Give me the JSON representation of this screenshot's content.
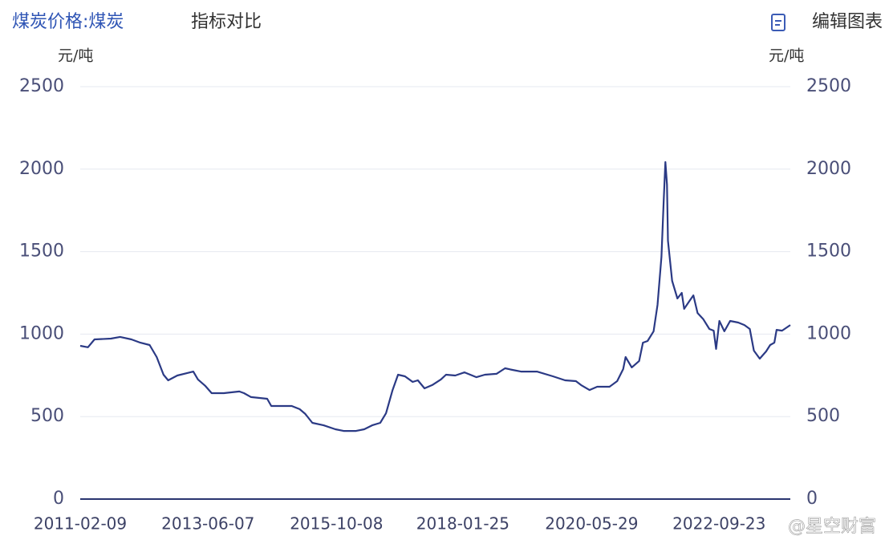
{
  "header": {
    "tab_active": "煤炭价格:煤炭",
    "tab": "指标对比",
    "edit_button": "编辑图表"
  },
  "chart_data": {
    "type": "line",
    "y_unit": "元/吨",
    "y2_unit": "元/吨",
    "x": [
      "2011-02-09",
      "2011-04-01",
      "2011-05-15",
      "2011-09-01",
      "2011-11-01",
      "2012-01-15",
      "2012-03-15",
      "2012-05-15",
      "2012-07-01",
      "2012-08-15",
      "2012-09-15",
      "2012-11-15",
      "2013-01-20",
      "2013-03-01",
      "2013-04-01",
      "2013-05-20",
      "2013-07-01",
      "2013-09-20",
      "2014-01-01",
      "2014-02-01",
      "2014-03-20",
      "2014-07-05",
      "2014-08-01",
      "2014-12-15",
      "2015-02-05",
      "2015-03-15",
      "2015-05-01",
      "2015-07-15",
      "2015-10-01",
      "2015-11-25",
      "2016-02-15",
      "2016-04-10",
      "2016-06-01",
      "2016-07-25",
      "2016-09-01",
      "2016-10-15",
      "2016-11-20",
      "2017-01-05",
      "2017-02-25",
      "2017-04-01",
      "2017-05-15",
      "2017-07-05",
      "2017-09-01",
      "2017-10-05",
      "2017-12-05",
      "2018-02-05",
      "2018-04-25",
      "2018-06-20",
      "2018-09-05",
      "2018-11-01",
      "2018-12-20",
      "2019-02-15",
      "2019-06-01",
      "2019-09-15",
      "2019-12-05",
      "2020-02-15",
      "2020-03-20",
      "2020-05-15",
      "2020-07-05",
      "2020-09-25",
      "2020-11-15",
      "2020-12-25",
      "2021-01-10",
      "2021-02-20",
      "2021-04-10",
      "2021-05-05",
      "2021-06-05",
      "2021-07-15",
      "2021-08-10",
      "2021-09-05",
      "2021-09-20",
      "2021-10-01",
      "2021-10-12",
      "2021-10-18",
      "2021-11-15",
      "2021-12-20",
      "2022-01-18",
      "2022-02-03",
      "2022-03-10",
      "2022-04-05",
      "2022-05-03",
      "2022-06-10",
      "2022-07-20",
      "2022-08-18",
      "2022-09-03",
      "2022-09-25",
      "2022-10-28",
      "2022-12-05",
      "2023-01-28",
      "2023-03-10",
      "2023-04-15",
      "2023-05-12",
      "2023-06-20",
      "2023-08-01",
      "2023-08-28",
      "2023-09-25",
      "2023-10-10",
      "2023-11-15",
      "2024-01-09"
    ],
    "series": [
      {
        "color": "#2b3a85",
        "values": [
          929,
          920,
          968,
          973,
          983,
          968,
          948,
          934,
          861,
          754,
          720,
          749,
          764,
          773,
          725,
          686,
          642,
          642,
          652,
          642,
          618,
          608,
          564,
          564,
          545,
          516,
          462,
          447,
          423,
          413,
          413,
          423,
          447,
          462,
          520,
          661,
          754,
          744,
          710,
          720,
          671,
          691,
          725,
          754,
          749,
          768,
          739,
          754,
          759,
          793,
          783,
          773,
          773,
          744,
          720,
          715,
          691,
          661,
          681,
          681,
          715,
          788,
          861,
          798,
          837,
          948,
          958,
          1017,
          1177,
          1469,
          1809,
          2043,
          1906,
          1566,
          1323,
          1216,
          1250,
          1153,
          1201,
          1235,
          1128,
          1090,
          1031,
          1021,
          910,
          1080,
          1017,
          1080,
          1070,
          1055,
          1031,
          900,
          851,
          895,
          934,
          948,
          1026,
          1021,
          1055
        ]
      }
    ],
    "xlim": [
      "2011-02-09",
      "2024-01-09"
    ],
    "xticks": [
      "2011-02-09",
      "2013-06-07",
      "2015-10-08",
      "2018-01-25",
      "2020-05-29",
      "2022-09-23"
    ],
    "ylim": [
      0,
      2500
    ],
    "yticks": [
      0,
      500,
      1000,
      1500,
      2000,
      2500
    ],
    "y2lim": [
      0,
      2500
    ],
    "y2ticks": [
      0,
      500,
      1000,
      1500,
      2000,
      2500
    ],
    "grid": true
  },
  "watermark": "@星空财富"
}
